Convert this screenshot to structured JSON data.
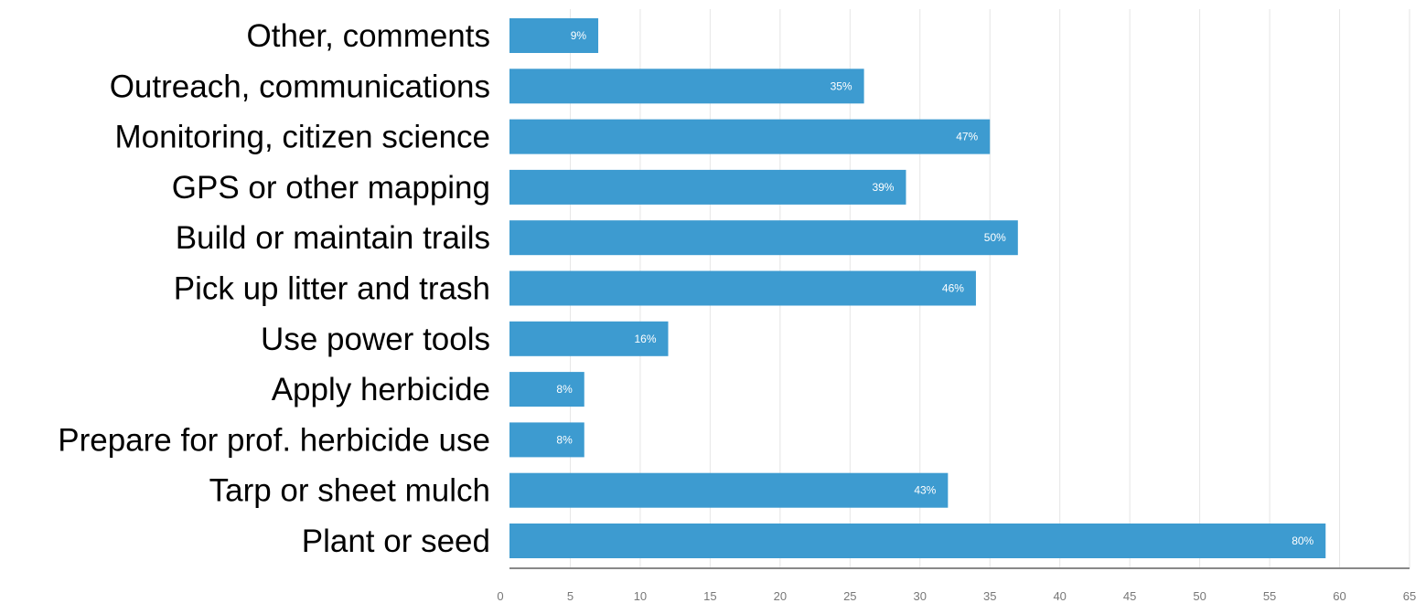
{
  "chart_data": {
    "type": "bar",
    "orientation": "horizontal",
    "categories": [
      "Other, comments",
      "Outreach, communications",
      "Monitoring, citizen science",
      "GPS or other mapping",
      "Build or maintain trails",
      "Pick up litter and trash",
      "Use power tools",
      "Apply herbicide",
      "Prepare for prof. herbicide use",
      "Tarp or sheet mulch",
      "Plant or seed"
    ],
    "values": [
      7,
      26,
      35,
      29,
      37,
      34,
      12,
      6,
      6,
      32,
      59
    ],
    "data_labels": [
      "9%",
      "35%",
      "47%",
      "39%",
      "50%",
      "46%",
      "16%",
      "8%",
      "8%",
      "43%",
      "80%"
    ],
    "xlim": [
      0,
      65
    ],
    "xticks": [
      0,
      5,
      10,
      15,
      20,
      25,
      30,
      35,
      40,
      45,
      50,
      55,
      60,
      65
    ],
    "grid": true,
    "bar_color": "#3d9bd0",
    "title": "",
    "xlabel": "",
    "ylabel": ""
  }
}
